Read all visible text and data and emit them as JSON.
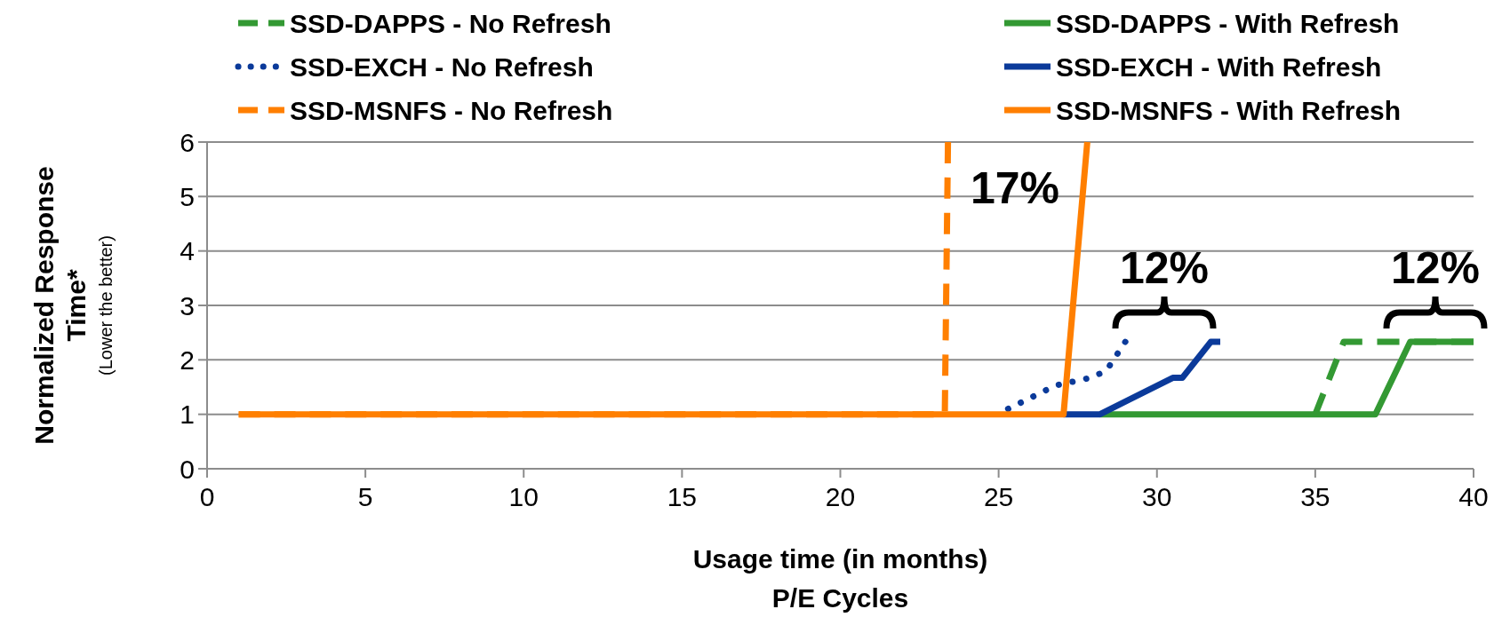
{
  "chart_data": {
    "type": "line",
    "xlabel": "Usage time (in months)\nP/E Cycles",
    "ylabel": "Normalized Response\nTime*",
    "xlim": [
      0,
      40
    ],
    "xticks": [
      0,
      5,
      10,
      15,
      20,
      25,
      30,
      35,
      40
    ],
    "ylim": [
      0,
      6
    ],
    "yticks": [
      0,
      1,
      2,
      3,
      4,
      5,
      6
    ],
    "grid": "y",
    "legend": "top",
    "marker": "none",
    "series": [
      {
        "name": "SSD-DAPPS - No Refresh",
        "color": "#339933",
        "line_style": "dashed",
        "x": [
          35,
          35.9,
          40
        ],
        "values": [
          1,
          2.33,
          2.33
        ]
      },
      {
        "name": "SSD-DAPPS - With Refresh",
        "color": "#339933",
        "line_style": "solid",
        "x": [
          28.2,
          36.9,
          38,
          40
        ],
        "values": [
          1,
          1,
          2.33,
          2.33
        ]
      },
      {
        "name": "SSD-EXCH - No Refresh",
        "color": "#0b3a9a",
        "line_style": "dotted",
        "x": [
          25.3,
          26.8,
          27.9,
          28.4,
          29
        ],
        "values": [
          1.1,
          1.53,
          1.67,
          1.8,
          2.33
        ]
      },
      {
        "name": "SSD-EXCH - With Refresh",
        "color": "#0b3a9a",
        "line_style": "solid",
        "x": [
          27.05,
          28.2,
          30.5,
          30.8,
          31.7,
          32
        ],
        "values": [
          1,
          1,
          1.67,
          1.67,
          2.33,
          2.33
        ]
      },
      {
        "name": "SSD-MSNFS - No Refresh",
        "color": "#ff7f00",
        "line_style": "dashed",
        "x": [
          1,
          23.3,
          23.4
        ],
        "values": [
          1,
          1,
          6
        ]
      },
      {
        "name": "SSD-MSNFS - With Refresh",
        "color": "#ff7f00",
        "line_style": "solid",
        "x": [
          1,
          27.05,
          27.8
        ],
        "values": [
          1,
          1,
          6
        ]
      }
    ],
    "annotations": [
      "(Lower the better)",
      "17%",
      "12%",
      "12%"
    ]
  }
}
